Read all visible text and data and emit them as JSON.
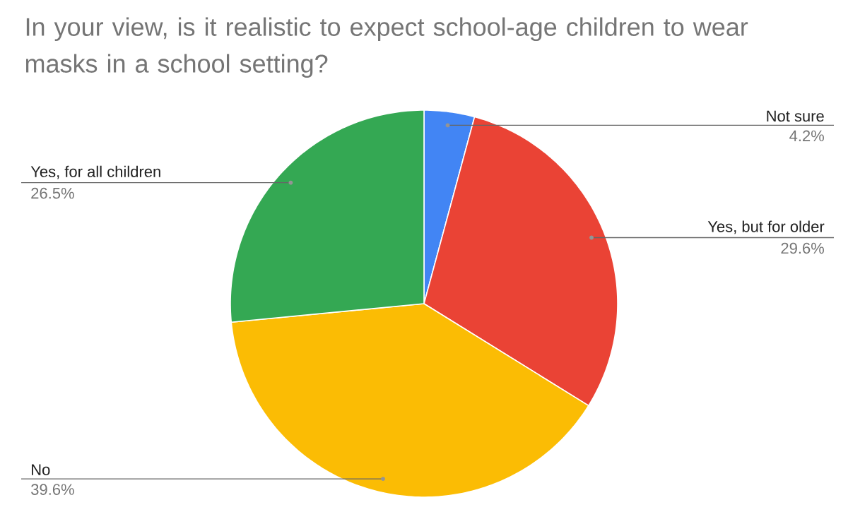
{
  "chart_data": {
    "type": "pie",
    "title": "In your view, is it realistic to expect school-age children to wear masks in a school setting?",
    "categories": [
      "Not sure",
      "Yes, but for older",
      "No",
      "Yes, for all children"
    ],
    "values": [
      4.2,
      29.6,
      39.6,
      26.5
    ],
    "value_labels": [
      "4.2%",
      "29.6%",
      "39.6%",
      "26.5%"
    ],
    "colors": [
      "#4285f4",
      "#ea4335",
      "#fbbc04",
      "#34a853"
    ]
  }
}
